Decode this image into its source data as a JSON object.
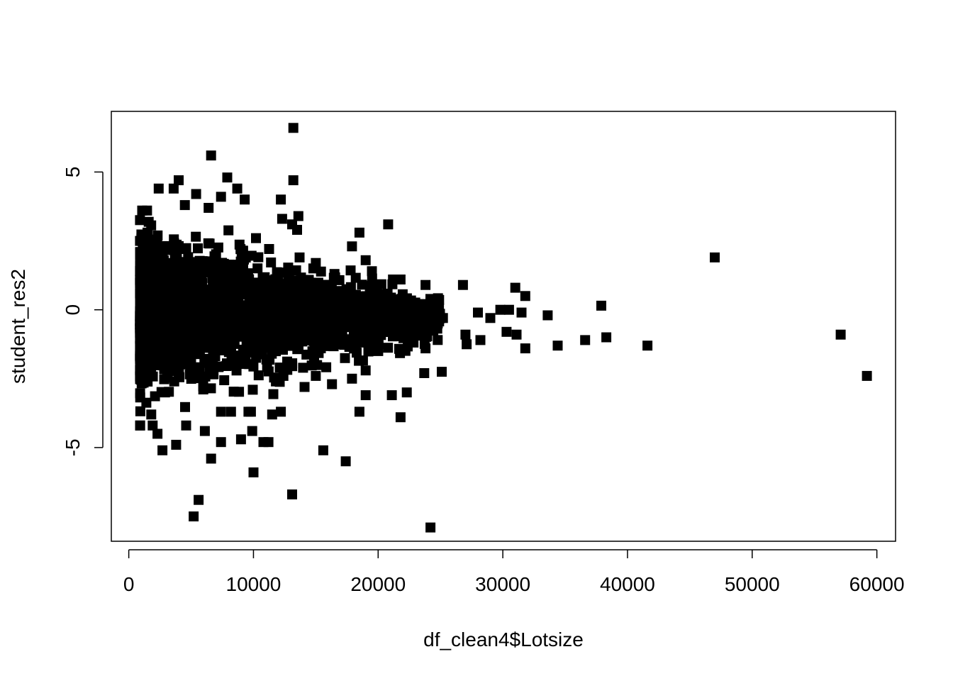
{
  "chart_data": {
    "type": "scatter",
    "title": "",
    "xlabel": "df_clean4$Lotsize",
    "ylabel": "student_res2",
    "xlim": [
      -1400,
      61500
    ],
    "ylim": [
      -8.4,
      7.2
    ],
    "x_ticks": [
      0,
      10000,
      20000,
      30000,
      40000,
      50000,
      60000
    ],
    "x_tick_labels": [
      "0",
      "10000",
      "20000",
      "30000",
      "40000",
      "50000",
      "60000"
    ],
    "y_ticks": [
      -5,
      0,
      5
    ],
    "y_tick_labels": [
      "-5",
      "0",
      "5"
    ],
    "marker": "filled-square",
    "marker_color": "#000000",
    "grid": false,
    "dense_core": {
      "description_x_range": [
        900,
        25000
      ],
      "y_spread_at_min_x": [
        -3.5,
        3.5
      ],
      "y_spread_at_max_x": [
        -1.0,
        0.6
      ]
    },
    "points": [
      [
        13200,
        6.6
      ],
      [
        6600,
        5.6
      ],
      [
        7900,
        4.8
      ],
      [
        13200,
        4.7
      ],
      [
        4000,
        4.7
      ],
      [
        2400,
        4.4
      ],
      [
        3600,
        4.4
      ],
      [
        8700,
        4.4
      ],
      [
        5400,
        4.2
      ],
      [
        7400,
        4.1
      ],
      [
        9300,
        4.0
      ],
      [
        12200,
        4.0
      ],
      [
        4500,
        3.8
      ],
      [
        6400,
        3.7
      ],
      [
        13600,
        3.4
      ],
      [
        12300,
        3.3
      ],
      [
        13100,
        3.1
      ],
      [
        20800,
        3.1
      ],
      [
        13500,
        2.9
      ],
      [
        18500,
        2.8
      ],
      [
        10200,
        2.6
      ],
      [
        17900,
        2.3
      ],
      [
        13700,
        1.9
      ],
      [
        47000,
        1.9
      ],
      [
        19000,
        1.8
      ],
      [
        15000,
        1.7
      ],
      [
        14800,
        1.5
      ],
      [
        16500,
        1.3
      ],
      [
        19500,
        1.4
      ],
      [
        21800,
        1.1
      ],
      [
        26800,
        0.9
      ],
      [
        23800,
        0.9
      ],
      [
        31000,
        0.8
      ],
      [
        31800,
        0.5
      ],
      [
        24300,
        0.3
      ],
      [
        37900,
        0.15
      ],
      [
        29800,
        0.0
      ],
      [
        30500,
        0.0
      ],
      [
        31500,
        -0.1
      ],
      [
        28000,
        -0.1
      ],
      [
        25200,
        -0.3
      ],
      [
        29000,
        -0.3
      ],
      [
        33600,
        -0.2
      ],
      [
        27000,
        -0.9
      ],
      [
        28200,
        -1.1
      ],
      [
        30300,
        -0.8
      ],
      [
        31100,
        -0.9
      ],
      [
        38300,
        -1.0
      ],
      [
        36600,
        -1.1
      ],
      [
        57100,
        -0.9
      ],
      [
        34400,
        -1.3
      ],
      [
        27100,
        -1.25
      ],
      [
        41600,
        -1.3
      ],
      [
        31800,
        -1.4
      ],
      [
        23800,
        -1.4
      ],
      [
        59200,
        -2.4
      ],
      [
        25100,
        -2.25
      ],
      [
        23700,
        -2.3
      ],
      [
        22300,
        -3.0
      ],
      [
        21100,
        -3.1
      ],
      [
        21800,
        -3.9
      ],
      [
        19000,
        -2.2
      ],
      [
        19000,
        -3.1
      ],
      [
        18500,
        -3.7
      ],
      [
        17900,
        -2.5
      ],
      [
        16300,
        -2.7
      ],
      [
        15000,
        -2.4
      ],
      [
        14100,
        -2.8
      ],
      [
        15600,
        -5.1
      ],
      [
        17400,
        -5.5
      ],
      [
        13100,
        -6.7
      ],
      [
        10000,
        -5.9
      ],
      [
        24200,
        -7.9
      ],
      [
        5600,
        -6.9
      ],
      [
        5200,
        -7.5
      ],
      [
        6600,
        -5.4
      ],
      [
        2700,
        -5.1
      ],
      [
        7400,
        -4.8
      ],
      [
        9000,
        -4.7
      ],
      [
        10800,
        -4.8
      ],
      [
        11200,
        -4.8
      ],
      [
        9900,
        -4.4
      ],
      [
        6100,
        -4.4
      ],
      [
        4600,
        -4.2
      ],
      [
        2300,
        -4.5
      ],
      [
        3800,
        -4.9
      ],
      [
        11500,
        -3.8
      ],
      [
        8200,
        -3.7
      ],
      [
        7400,
        -3.7
      ],
      [
        12200,
        -3.7
      ],
      [
        9600,
        -3.7
      ],
      [
        9800,
        -3.7
      ],
      [
        1800,
        -3.8
      ],
      [
        12400,
        -2.4
      ],
      [
        11800,
        -2.6
      ]
    ]
  }
}
